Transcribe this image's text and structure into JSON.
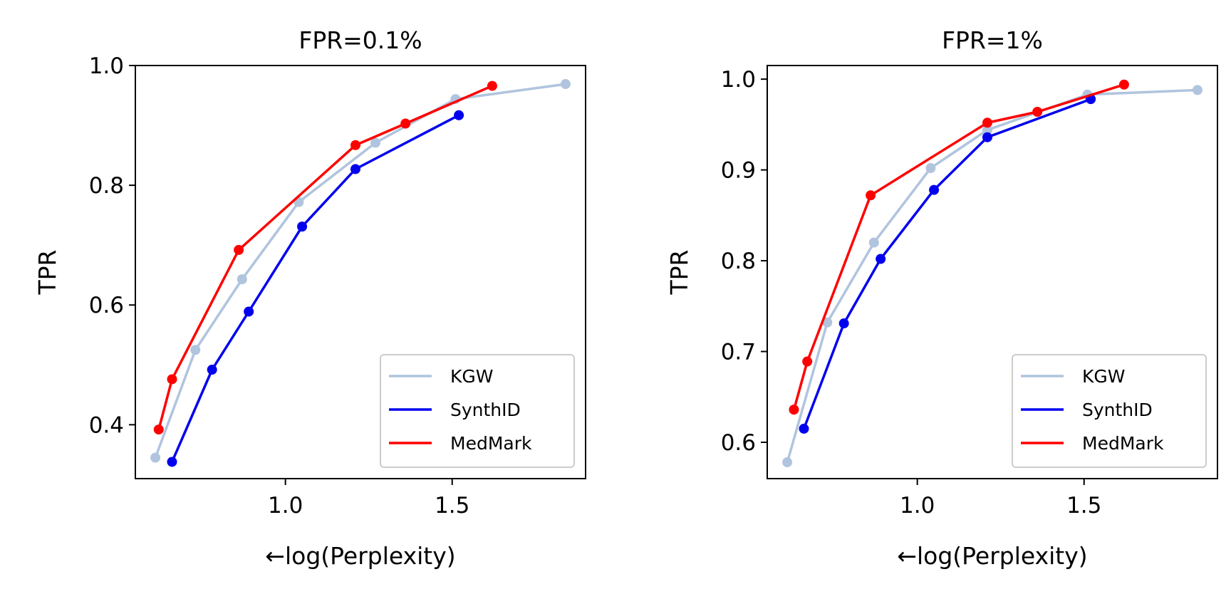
{
  "chart_data": [
    {
      "type": "line",
      "title": "FPR=0.1%",
      "xlabel": "←log(Perplexity)",
      "ylabel": "TPR",
      "xlim": [
        0.55,
        1.9
      ],
      "ylim": [
        0.31,
        1.0
      ],
      "xticks": [
        1.0,
        1.5
      ],
      "xtick_labels": [
        "1.0",
        "1.5"
      ],
      "yticks": [
        0.4,
        0.6,
        0.8,
        1.0
      ],
      "ytick_labels": [
        "0.4",
        "0.6",
        "0.8",
        "1.0"
      ],
      "grid": false,
      "legend_position": "lower-right",
      "series": [
        {
          "name": "KGW",
          "color": "#b0c4de",
          "x": [
            0.61,
            0.73,
            0.87,
            1.04,
            1.27,
            1.51,
            1.84
          ],
          "y": [
            0.345,
            0.525,
            0.643,
            0.772,
            0.871,
            0.944,
            0.969
          ]
        },
        {
          "name": "SynthID",
          "color": "#0000ee",
          "x": [
            0.66,
            0.78,
            0.89,
            1.05,
            1.21,
            1.52
          ],
          "y": [
            0.338,
            0.492,
            0.589,
            0.731,
            0.827,
            0.917
          ]
        },
        {
          "name": "MedMark",
          "color": "#ff0000",
          "x": [
            0.62,
            0.66,
            0.86,
            1.21,
            1.36,
            1.62
          ],
          "y": [
            0.392,
            0.476,
            0.692,
            0.867,
            0.903,
            0.966
          ]
        }
      ]
    },
    {
      "type": "line",
      "title": "FPR=1%",
      "xlabel": "←log(Perplexity)",
      "ylabel": "TPR",
      "xlim": [
        0.55,
        1.9
      ],
      "ylim": [
        0.56,
        1.015
      ],
      "xticks": [
        1.0,
        1.5
      ],
      "xtick_labels": [
        "1.0",
        "1.5"
      ],
      "yticks": [
        0.6,
        0.7,
        0.8,
        0.9,
        1.0
      ],
      "ytick_labels": [
        "0.6",
        "0.7",
        "0.8",
        "0.9",
        "1.0"
      ],
      "grid": false,
      "legend_position": "lower-right",
      "series": [
        {
          "name": "KGW",
          "color": "#b0c4de",
          "x": [
            0.61,
            0.73,
            0.87,
            1.04,
            1.21,
            1.51,
            1.84
          ],
          "y": [
            0.578,
            0.732,
            0.82,
            0.902,
            0.944,
            0.983,
            0.988
          ]
        },
        {
          "name": "SynthID",
          "color": "#0000ee",
          "x": [
            0.66,
            0.78,
            0.89,
            1.05,
            1.21,
            1.52
          ],
          "y": [
            0.615,
            0.731,
            0.802,
            0.878,
            0.936,
            0.978
          ]
        },
        {
          "name": "MedMark",
          "color": "#ff0000",
          "x": [
            0.63,
            0.67,
            0.86,
            1.21,
            1.36,
            1.62
          ],
          "y": [
            0.636,
            0.689,
            0.872,
            0.952,
            0.964,
            0.994
          ]
        }
      ]
    }
  ]
}
